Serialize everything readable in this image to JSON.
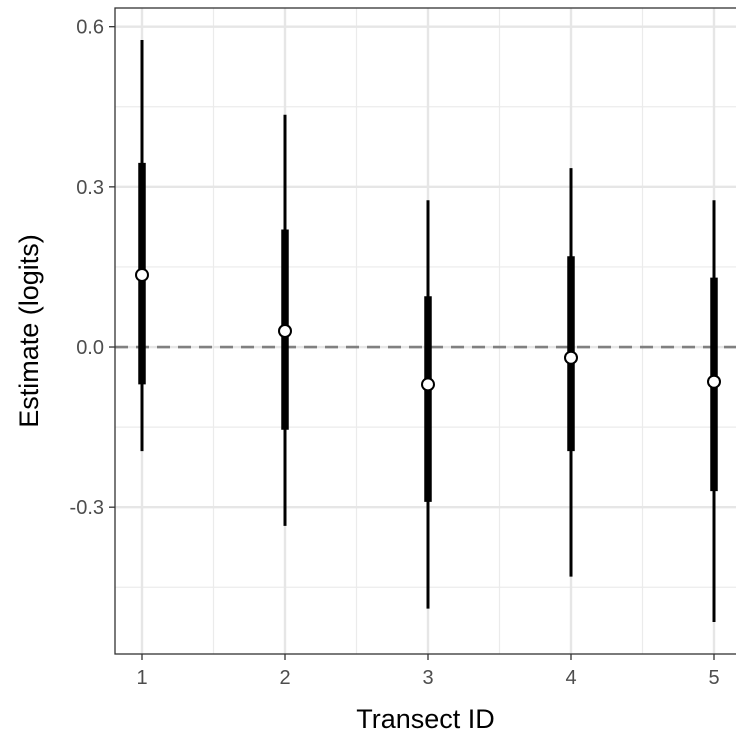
{
  "chart_data": {
    "type": "pointrange",
    "xlabel": "Transect ID",
    "ylabel": "Estimate (logits)",
    "categories": [
      "1",
      "2",
      "3",
      "4",
      "5"
    ],
    "y_ticks": [
      0.6,
      0.3,
      0.0,
      -0.3
    ],
    "y_tick_labels": [
      "0.6",
      "0.3",
      "0.0",
      "-0.3"
    ],
    "ylim": [
      -0.575,
      0.635
    ],
    "grid": true,
    "reference_line": {
      "y": 0.0,
      "style": "dashed",
      "color": "#808080"
    },
    "series": [
      {
        "points": [
          {
            "x": "1",
            "estimate": 0.135,
            "inner_low": -0.07,
            "inner_high": 0.345,
            "outer_low": -0.195,
            "outer_high": 0.575
          },
          {
            "x": "2",
            "estimate": 0.03,
            "inner_low": -0.155,
            "inner_high": 0.22,
            "outer_low": -0.335,
            "outer_high": 0.435
          },
          {
            "x": "3",
            "estimate": -0.07,
            "inner_low": -0.29,
            "inner_high": 0.095,
            "outer_low": -0.49,
            "outer_high": 0.275
          },
          {
            "x": "4",
            "estimate": -0.02,
            "inner_low": -0.195,
            "inner_high": 0.17,
            "outer_low": -0.43,
            "outer_high": 0.335
          },
          {
            "x": "5",
            "estimate": -0.065,
            "inner_low": -0.27,
            "inner_high": 0.13,
            "outer_low": -0.515,
            "outer_high": 0.275
          }
        ]
      }
    ]
  }
}
